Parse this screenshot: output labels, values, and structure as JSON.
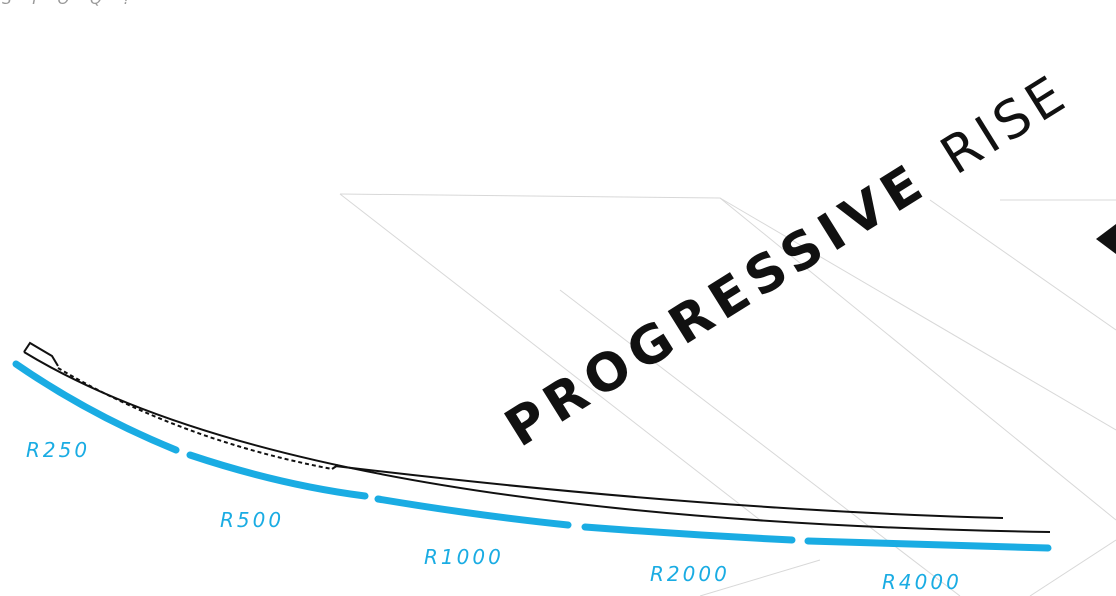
{
  "title": {
    "bold": "PROGRESSIVE",
    "light": "RISE"
  },
  "top_fragment": "S I O Q ?",
  "radii": [
    {
      "label": "R250"
    },
    {
      "label": "R500"
    },
    {
      "label": "R1000"
    },
    {
      "label": "R2000"
    },
    {
      "label": "R4000"
    }
  ],
  "colors": {
    "accent": "#1aace3",
    "ink": "#111111",
    "grid": "#d8d8d8"
  }
}
